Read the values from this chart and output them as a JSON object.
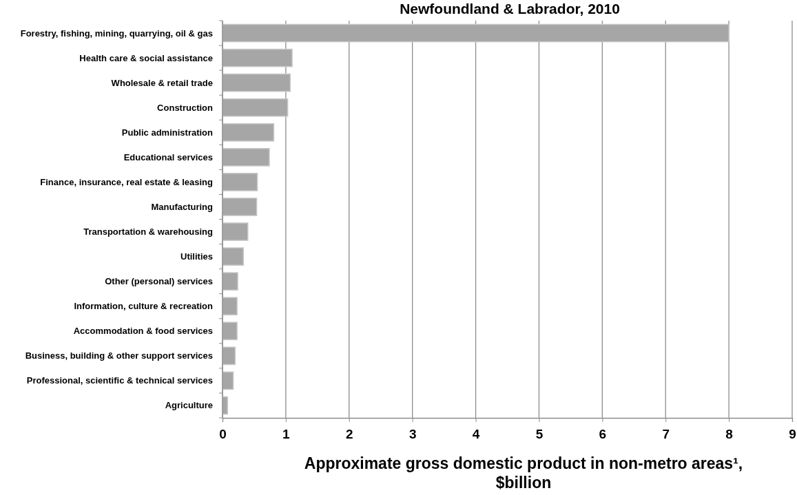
{
  "chart_data": {
    "type": "bar",
    "orientation": "horizontal",
    "title": "Newfoundland & Labrador, 2010",
    "xlabel": "Approximate gross domestic product in non-metro areas¹, $billion",
    "categories": [
      "Forestry, fishing, mining, quarrying, oil & gas",
      "Health care & social assistance",
      "Wholesale & retail trade",
      "Construction",
      "Public administration",
      "Educational services",
      "Finance, insurance, real estate & leasing",
      "Manufacturing",
      "Transportation & warehousing",
      "Utilities",
      "Other (personal) services",
      "Information, culture & recreation",
      "Accommodation & food services",
      "Business, building & other support services",
      "Professional, scientific & technical services",
      "Agriculture"
    ],
    "values": [
      8.0,
      1.1,
      1.07,
      1.03,
      0.81,
      0.74,
      0.55,
      0.54,
      0.4,
      0.33,
      0.24,
      0.23,
      0.23,
      0.2,
      0.17,
      0.08
    ],
    "color": "#a6a6a6",
    "xlim": [
      0,
      9
    ],
    "xticks": [
      0,
      1,
      2,
      3,
      4,
      5,
      6,
      7,
      8,
      9
    ],
    "grid": "x"
  }
}
